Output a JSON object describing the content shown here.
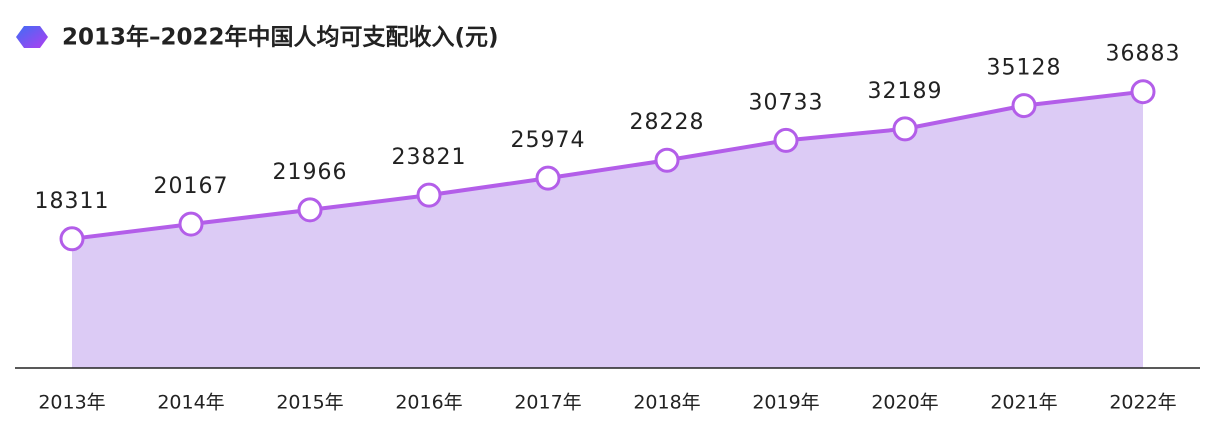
{
  "chart_data": {
    "type": "area",
    "title": "2013年–2022年中国人均可支配收入(元)",
    "categories": [
      "2013年",
      "2014年",
      "2015年",
      "2016年",
      "2017年",
      "2018年",
      "2019年",
      "2020年",
      "2021年",
      "2022年"
    ],
    "values": [
      18311,
      20167,
      21966,
      23821,
      25974,
      28228,
      30733,
      32189,
      35128,
      36883
    ],
    "color": "#b35ee9",
    "fill_color": "#dccbf5",
    "ylim": [
      2000,
      40000
    ]
  }
}
